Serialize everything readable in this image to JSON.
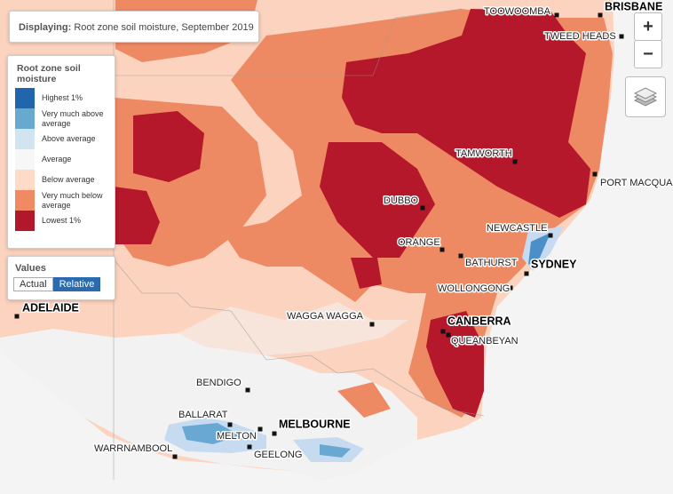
{
  "header": {
    "label": "Displaying:",
    "value": "Root zone soil moisture, September 2019"
  },
  "legend": {
    "title": "Root zone soil moisture",
    "items": [
      {
        "label": "Highest 1%",
        "color": "#2166ac"
      },
      {
        "label": "Very much above average",
        "color": "#67a9cf"
      },
      {
        "label": "Above average",
        "color": "#d1e5f0"
      },
      {
        "label": "Average",
        "color": "#f7f7f7"
      },
      {
        "label": "Below average",
        "color": "#fddbc7"
      },
      {
        "label": "Very much below average",
        "color": "#ef8a62"
      },
      {
        "label": "Lowest 1%",
        "color": "#b2182b"
      }
    ]
  },
  "values_toggle": {
    "title": "Values",
    "options": [
      "Actual",
      "Relative"
    ]
  },
  "zoom": {
    "in": "+",
    "out": "−"
  },
  "places": [
    "TOOWOOMBA",
    "BRISBANE",
    "TWEED HEADS",
    "TAMWORTH",
    "PORT MACQUA",
    "DUBBO",
    "NEWCASTLE",
    "ORANGE",
    "BATHURST",
    "SYDNEY",
    "WOLLONGONG",
    "ADELAIDE",
    "WAGGA WAGGA",
    "CANBERRA",
    "QUEANBEYAN",
    "BENDIGO",
    "BALLARAT",
    "MELBOURNE",
    "MELTON",
    "GEELONG",
    "WARRNAMBOOL"
  ]
}
